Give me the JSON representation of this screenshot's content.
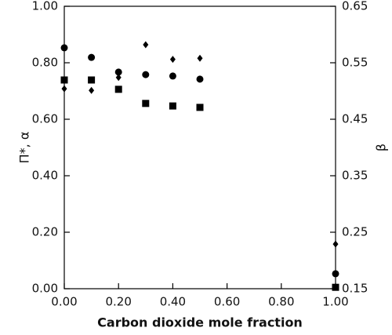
{
  "chart_data": {
    "type": "scatter",
    "x_label": "Carbon dioxide mole fraction",
    "y_label": "Π*, α",
    "y2_label": "β",
    "x": [
      0,
      0.1,
      0.2,
      0.3,
      0.4,
      0.5,
      1.0
    ],
    "xlim": [
      0,
      1
    ],
    "xticks": [
      {
        "value": 0,
        "label": "0.00"
      },
      {
        "value": 0.2,
        "label": "0.20"
      },
      {
        "value": 0.4,
        "label": "0.40"
      },
      {
        "value": 0.6,
        "label": "0.60"
      },
      {
        "value": 0.8,
        "label": "0.80"
      },
      {
        "value": 1,
        "label": "1.00"
      }
    ],
    "ylim": [
      0,
      1
    ],
    "yticks": [
      {
        "value": 0,
        "label": "0.00"
      },
      {
        "value": 0.2,
        "label": "0.20"
      },
      {
        "value": 0.4,
        "label": "0.40"
      },
      {
        "value": 0.6,
        "label": "0.60"
      },
      {
        "value": 0.8,
        "label": "0.80"
      },
      {
        "value": 1,
        "label": "1.00"
      }
    ],
    "y2lim": [
      0.15,
      0.65
    ],
    "y2ticks": [
      0.15,
      0.25,
      0.35,
      0.45,
      0.55,
      0.65
    ],
    "series": [
      {
        "marker": "circle",
        "color": "#000000",
        "values": [
          0.853,
          0.819,
          0.767,
          0.758,
          0.753,
          0.742,
          0.053
        ]
      },
      {
        "marker": "square",
        "color": "#000000",
        "values": [
          0.739,
          0.739,
          0.706,
          0.656,
          0.647,
          0.642,
          0.005
        ]
      },
      {
        "marker": "diamond",
        "color": "#000000",
        "axis": "y2",
        "values": [
          0.504,
          0.501,
          0.524,
          0.582,
          0.556,
          0.558,
          0.229
        ]
      }
    ]
  }
}
